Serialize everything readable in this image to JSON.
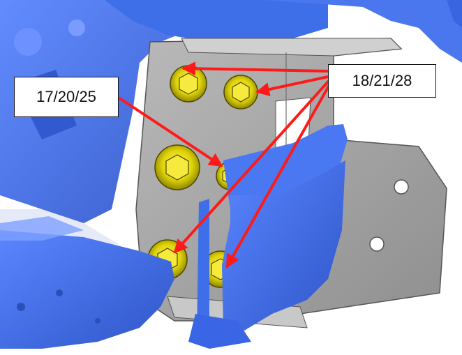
{
  "callouts": {
    "left_label": "17/20/25",
    "right_label": "18/21/28"
  },
  "colors": {
    "scan_blue": "#3f6fe8",
    "plate_gray": "#a8a8a8",
    "bolt_yellow": "#e0d40a",
    "arrow_red": "#ff1a1a"
  }
}
